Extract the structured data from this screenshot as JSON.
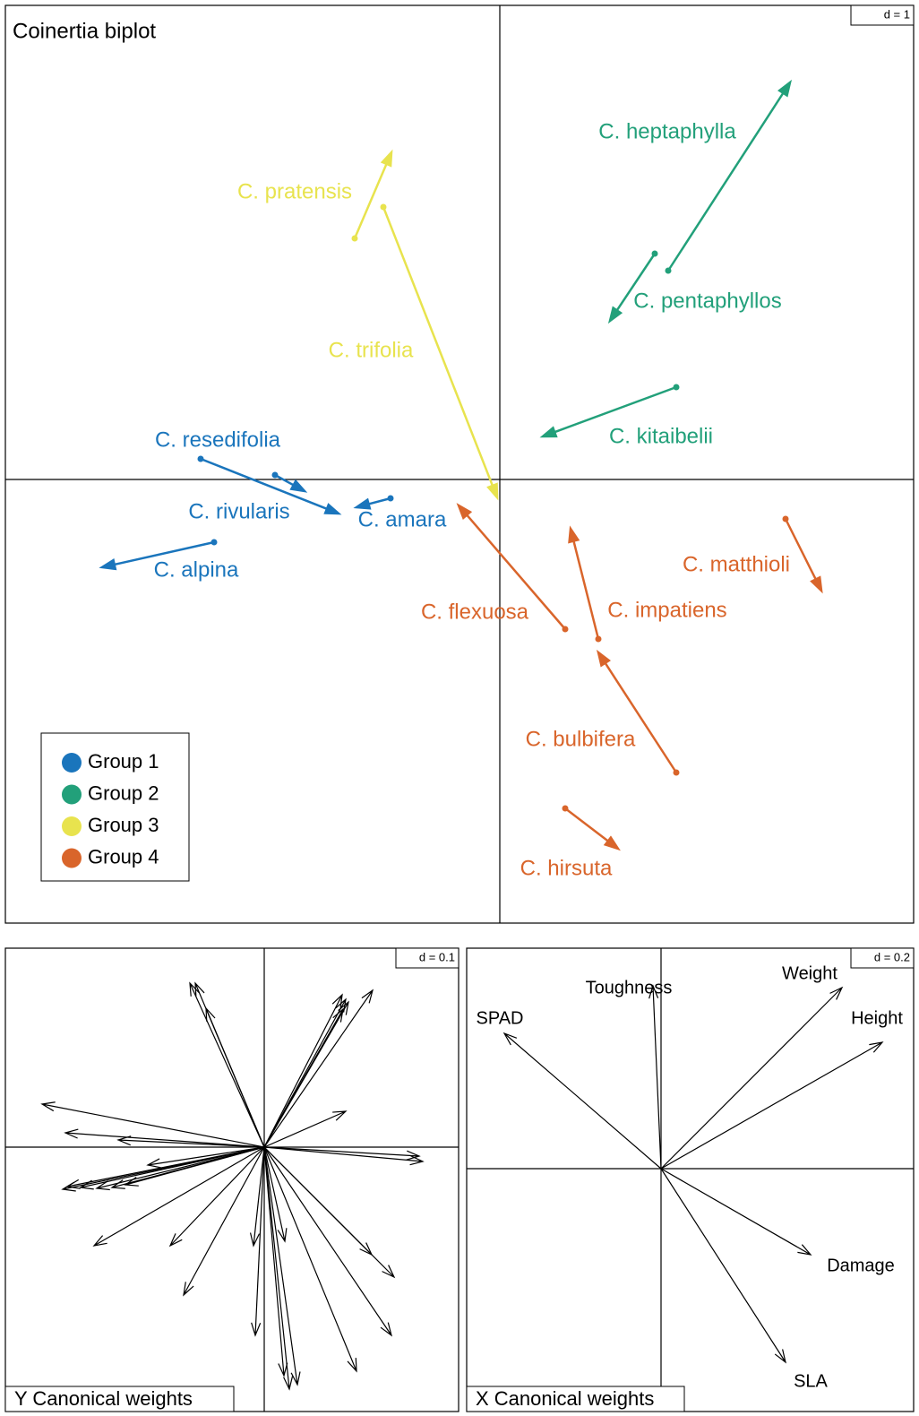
{
  "chart_data": [
    {
      "type": "arrows",
      "title": "Coinertia biplot",
      "scale_label": "d = 1",
      "xlim": [
        -5.52,
        4.62
      ],
      "ylim": [
        -4.95,
        5.29
      ],
      "legend": "bottom-left",
      "series": [
        {
          "name": "Group 1",
          "color": "#1a75bc",
          "labels": [
            "C. resedifolia",
            "C. rivularis",
            "C. amara",
            "C. alpina"
          ],
          "x0": [
            -3.34,
            -2.51,
            -1.22,
            -3.19
          ],
          "y0": [
            0.23,
            0.05,
            -0.21,
            -0.7
          ],
          "x1": [
            -1.8,
            -2.18,
            -1.6,
            -4.44
          ],
          "y1": [
            -0.38,
            -0.13,
            -0.31,
            -0.98
          ]
        },
        {
          "name": "Group 2",
          "color": "#22a07a",
          "labels": [
            "C. heptaphylla",
            "C. pentaphyllos",
            "C. kitaibelii"
          ],
          "x0": [
            1.88,
            1.73,
            1.97
          ],
          "y0": [
            2.33,
            2.52,
            1.03
          ],
          "x1": [
            3.24,
            1.23,
            0.48
          ],
          "y1": [
            4.43,
            1.77,
            0.48
          ]
        },
        {
          "name": "Group 3",
          "color": "#e8e34e",
          "labels": [
            "C. pratensis",
            "C. trifolia"
          ],
          "x0": [
            -1.62,
            -1.3
          ],
          "y0": [
            2.69,
            3.04
          ],
          "x1": [
            -1.21,
            -0.03
          ],
          "y1": [
            3.65,
            -0.2
          ]
        },
        {
          "name": "Group 4",
          "color": "#d9652b",
          "labels": [
            "C. flexuosa",
            "C. impatiens",
            "C. matthioli",
            "C. bulbifera",
            "C. hirsuta"
          ],
          "x0": [
            0.73,
            1.1,
            3.19,
            1.97,
            0.73
          ],
          "y0": [
            -1.67,
            -1.78,
            -0.44,
            -3.27,
            -3.67
          ],
          "x1": [
            -0.46,
            0.79,
            3.59,
            1.1,
            1.32
          ],
          "y1": [
            -0.29,
            -0.55,
            -1.24,
            -1.93,
            -4.12
          ]
        }
      ]
    },
    {
      "type": "arrows",
      "title": "Y Canonical weights",
      "scale_label": "d = 0.1",
      "xlim": [
        -0.289,
        0.217
      ],
      "ylim": [
        -0.295,
        0.222
      ],
      "color": "#000000",
      "x": [
        -0.248,
        -0.083,
        -0.077,
        -0.065,
        0.087,
        0.091,
        0.094,
        0.121,
        0.088,
        0.091,
        0.177,
        0.173,
        -0.222,
        -0.163,
        -0.225,
        -0.22,
        -0.205,
        -0.187,
        -0.17,
        -0.155,
        -0.13,
        -0.19,
        -0.105,
        -0.09,
        -0.012,
        -0.01,
        0.023,
        0.022,
        0.028,
        0.037,
        0.103,
        0.142,
        0.12,
        0.145
      ],
      "y": [
        0.048,
        0.183,
        0.183,
        0.155,
        0.17,
        0.165,
        0.162,
        0.175,
        0.154,
        0.04,
        -0.016,
        -0.01,
        0.016,
        0.008,
        -0.047,
        -0.044,
        -0.045,
        -0.046,
        -0.045,
        -0.042,
        -0.02,
        -0.11,
        -0.11,
        -0.165,
        -0.11,
        -0.21,
        -0.105,
        -0.255,
        -0.27,
        -0.265,
        -0.25,
        -0.21,
        -0.12,
        -0.145
      ]
    },
    {
      "type": "arrows",
      "title": "X Canonical weights",
      "scale_label": "d = 0.2",
      "xlim": [
        -0.434,
        0.564
      ],
      "ylim": [
        -0.542,
        0.492
      ],
      "color": "#000000",
      "labels": [
        "SPAD",
        "Toughness",
        "Weight",
        "Height",
        "Damage",
        "SLA"
      ],
      "x": [
        -0.35,
        -0.018,
        0.404,
        0.494,
        0.334,
        0.278
      ],
      "y": [
        0.302,
        0.408,
        0.404,
        0.282,
        -0.192,
        -0.432
      ]
    }
  ]
}
